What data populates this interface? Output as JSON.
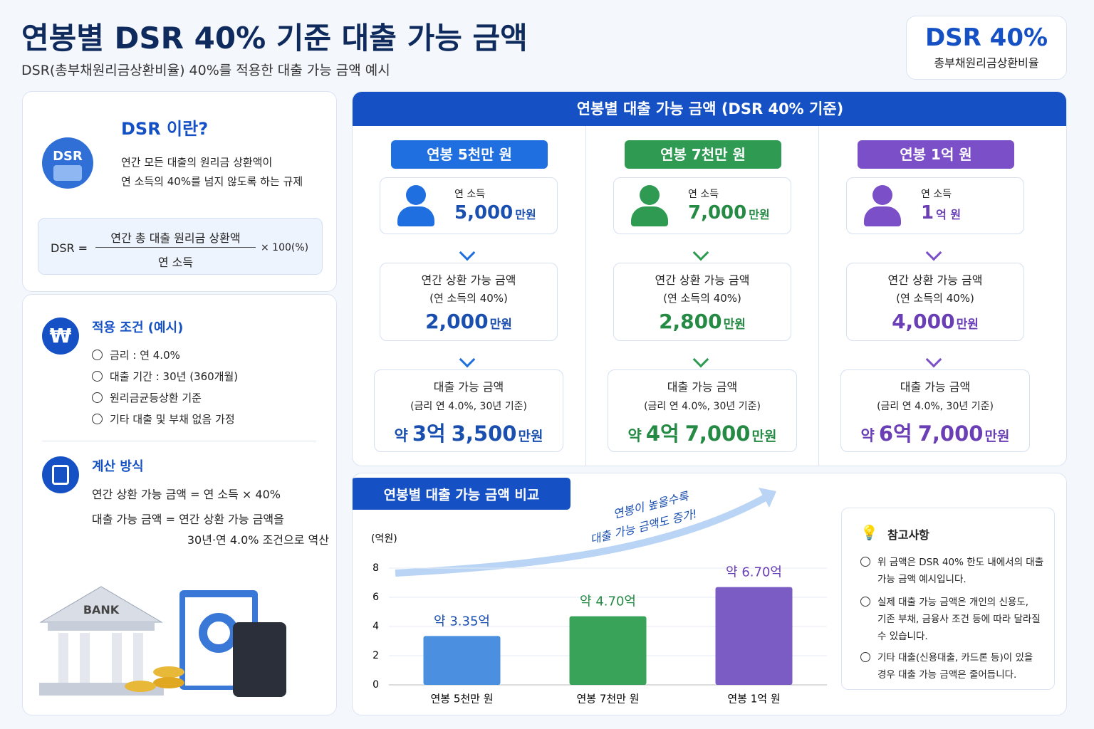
{
  "header": {
    "title": "연봉별 DSR 40% 기준 대출 가능 금액",
    "subtitle": "DSR(총부채원리금상환비율) 40%를 적용한 대출 가능 금액 예시",
    "badge_title": "DSR 40%",
    "badge_subtitle": "총부채원리금상환비율"
  },
  "definition": {
    "title": "DSR 이란?",
    "icon": "DSR",
    "lines": [
      "연간 모든 대출의 원리금 상환액이",
      "연 소득의 40%를 넘지 않도록 하는 규제"
    ],
    "formula": {
      "lhs": "DSR =",
      "numerator": "연간 총 대출 원리금 상환액",
      "denominator": "연 소득",
      "factor": "× 100(%)"
    }
  },
  "conditions": {
    "title": "적용 조건 (예시)",
    "items": [
      "금리 : 연 4.0%",
      "대출 기간 : 30년 (360개월)",
      "원리금균등상환 기준",
      "기타 대출 및 부채 없음 가정"
    ]
  },
  "method": {
    "title": "계산 방식",
    "lines": [
      "연간 상환 가능 금액 = 연 소득 × 40%",
      "대출 가능 금액 = 연간 상환 가능 금액을",
      "30년·연 4.0% 조건으로 역산"
    ]
  },
  "illustration": {
    "bank": "BANK"
  },
  "cases": {
    "title": "연봉별 대출 가능 금액 (DSR 40% 기준)",
    "items": [
      {
        "label": "연봉 5천만 원",
        "color": "#1f6fe0",
        "text_color": "#1a4fb0",
        "income_label": "연 소득",
        "income": "5,000",
        "income_unit": "만원",
        "repay_title": "연간 상환 가능 금액",
        "repay_sub": "(연 소득의 40%)",
        "repay": "2,000",
        "repay_unit": "만원",
        "loan_title": "대출 가능 금액",
        "loan_sub": "(금리 연 4.0%, 30년 기준)",
        "loan_prefix": "약",
        "loan_main": "3억",
        "loan_rest": "3,500",
        "loan_unit": "만원"
      },
      {
        "label": "연봉 7천만 원",
        "color": "#2e9a52",
        "text_color": "#258a43",
        "income_label": "연 소득",
        "income": "7,000",
        "income_unit": "만원",
        "repay_title": "연간 상환 가능 금액",
        "repay_sub": "(연 소득의 40%)",
        "repay": "2,800",
        "repay_unit": "만원",
        "loan_title": "대출 가능 금액",
        "loan_sub": "(금리 연 4.0%, 30년 기준)",
        "loan_prefix": "약",
        "loan_main": "4억",
        "loan_rest": "7,000",
        "loan_unit": "만원"
      },
      {
        "label": "연봉 1억 원",
        "color": "#7b4fc8",
        "text_color": "#6a3fb5",
        "income_label": "연 소득",
        "income": "1",
        "income_unit": "억 원",
        "repay_title": "연간 상환 가능 금액",
        "repay_sub": "(연 소득의 40%)",
        "repay": "4,000",
        "repay_unit": "만원",
        "loan_title": "대출 가능 금액",
        "loan_sub": "(금리 연 4.0%, 30년 기준)",
        "loan_prefix": "약",
        "loan_main": "6억",
        "loan_rest": "7,000",
        "loan_unit": "만원"
      }
    ]
  },
  "chart_data": {
    "type": "bar",
    "title": "연봉별 대출 가능 금액 비교",
    "y_label": "(억원)",
    "categories": [
      "연봉 5천만 원",
      "연봉 7천만 원",
      "연봉 1억 원"
    ],
    "values": [
      3.35,
      4.7,
      6.7
    ],
    "value_labels": [
      "약 3.35억",
      "약 4.70억",
      "약 6.70억"
    ],
    "colors": [
      "#4a8fe0",
      "#3aa35a",
      "#7b5cc4"
    ],
    "label_colors": [
      "#1a4fb0",
      "#258a43",
      "#6a3fb5"
    ],
    "ylim": [
      0,
      8
    ],
    "yticks": [
      0,
      2,
      4,
      6,
      8
    ],
    "grid": true,
    "annotation": [
      "연봉이 높을수록",
      "대출 가능 금액도 증가!"
    ]
  },
  "notes": {
    "title": "참고사항",
    "items": [
      "위 금액은 DSR 40% 한도 내에서의 대출 가능 금액 예시입니다.",
      "실제 대출 가능 금액은 개인의 신용도, 기존 부채, 금융사 조건 등에 따라 달라질 수 있습니다.",
      "기타 대출(신용대출, 카드론 등)이 있을 경우 대출 가능 금액은 줄어듭니다."
    ]
  }
}
